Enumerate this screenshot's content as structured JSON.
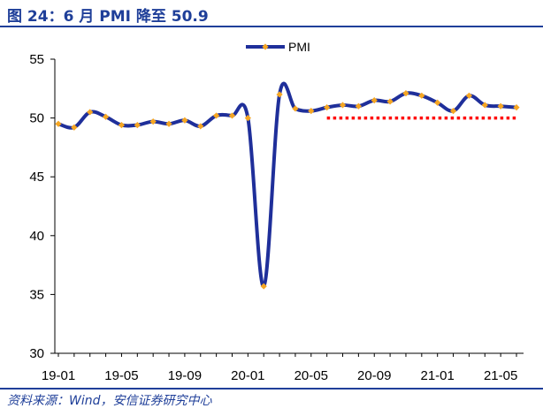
{
  "header": {
    "title": "图 24：6 月 PMI 降至 50.9"
  },
  "footer": {
    "source": "资料来源：Wind，安信证券研究中心"
  },
  "colors": {
    "line": "#1f2f9a",
    "marker": "#f5a623",
    "reference": "#ff0000",
    "title": "#1f3f99"
  },
  "chart_data": {
    "type": "line",
    "title": "",
    "xlabel": "",
    "ylabel": "",
    "ylim": [
      30,
      55
    ],
    "y_ticks": [
      "30",
      "35",
      "40",
      "45",
      "50",
      "55"
    ],
    "x_tick_labels": [
      "19-01",
      "19-05",
      "19-09",
      "20-01",
      "20-05",
      "20-09",
      "21-01",
      "21-05"
    ],
    "x_tick_index": [
      0,
      4,
      8,
      12,
      16,
      20,
      24,
      28
    ],
    "legend": {
      "position": "top-center",
      "entries": [
        "PMI"
      ]
    },
    "grid": false,
    "x": [
      "19-01",
      "19-02",
      "19-03",
      "19-04",
      "19-05",
      "19-06",
      "19-07",
      "19-08",
      "19-09",
      "19-10",
      "19-11",
      "19-12",
      "20-01",
      "20-02",
      "20-03",
      "20-04",
      "20-05",
      "20-06",
      "20-07",
      "20-08",
      "20-09",
      "20-10",
      "20-11",
      "20-12",
      "21-01",
      "21-02",
      "21-03",
      "21-04",
      "21-05",
      "21-06"
    ],
    "series": [
      {
        "name": "PMI",
        "values": [
          49.5,
          49.2,
          50.5,
          50.1,
          49.4,
          49.4,
          49.7,
          49.5,
          49.8,
          49.3,
          50.2,
          50.2,
          50.0,
          35.7,
          52.0,
          50.8,
          50.6,
          50.9,
          51.1,
          51.0,
          51.5,
          51.4,
          52.1,
          51.9,
          51.3,
          50.6,
          51.9,
          51.1,
          51.0,
          50.9
        ]
      }
    ],
    "reference_line": {
      "value": 50,
      "from": "20-06",
      "to": "21-06",
      "style": "dotted"
    }
  }
}
